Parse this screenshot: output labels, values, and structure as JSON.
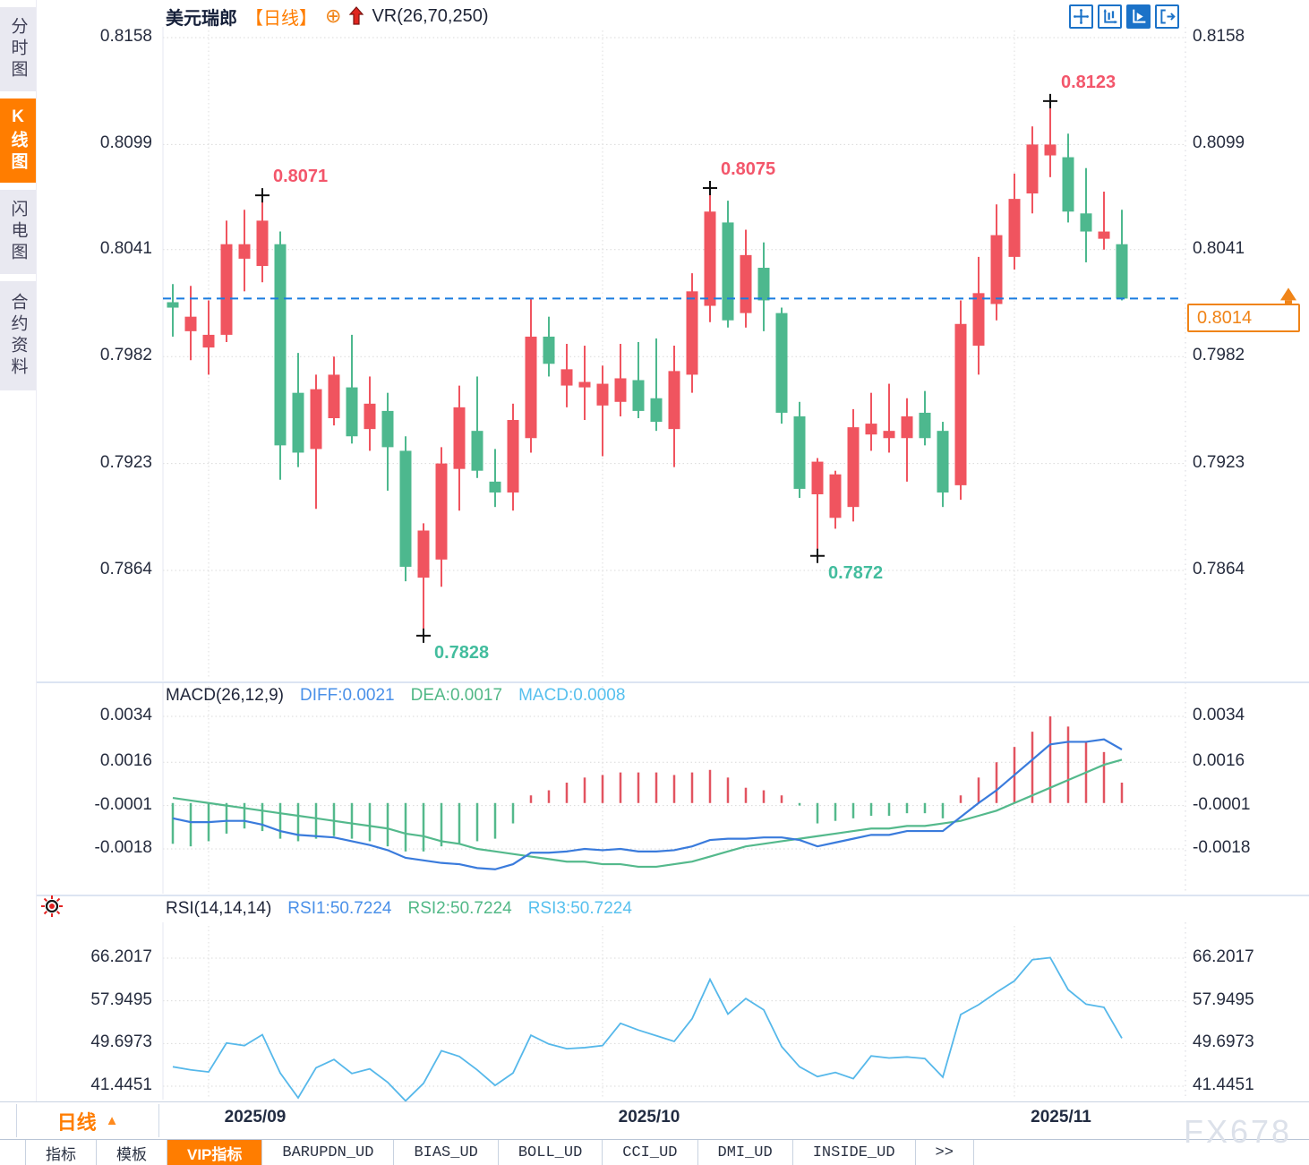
{
  "header": {
    "title": "美元瑞郎",
    "period_tag": "【日线】",
    "add_icon": "⊕",
    "indicator_label": "VR(26,70,250)"
  },
  "toolbar": {
    "icons": [
      "move-crosshair-icon",
      "axis-candles-icon",
      "axis-play-icon",
      "exit-arrow-icon"
    ]
  },
  "sidebar": {
    "items": [
      {
        "label": "分时图",
        "active": false
      },
      {
        "label": "K线图",
        "active": true
      },
      {
        "label": "闪电图",
        "active": false
      },
      {
        "label": "合约资料",
        "active": false
      }
    ]
  },
  "colors": {
    "up": "#f0545f",
    "down": "#4db88e",
    "accent_orange": "#ff7d00",
    "dash_line_blue": "#1a7ce0",
    "diff_blue": "#3a7bdc",
    "dea_green": "#54b98c",
    "rsi_cyan": "#56b8ea",
    "anno_high": "#f3566b",
    "anno_low": "#43bd9e"
  },
  "chart_data": [
    {
      "type": "candlestick",
      "title": "美元瑞郎 日线",
      "y_ticks": [
        0.8158,
        0.8099,
        0.8041,
        0.7982,
        0.7923,
        0.7864
      ],
      "x_ticks": [
        {
          "label": "2025/09",
          "index": 2
        },
        {
          "label": "2025/10",
          "index": 24
        },
        {
          "label": "2025/11",
          "index": 47
        }
      ],
      "current_price": "0.8014",
      "ohlc": [
        [
          0.8012,
          0.8022,
          0.7993,
          0.8009
        ],
        [
          0.7996,
          0.8021,
          0.798,
          0.8004
        ],
        [
          0.7987,
          0.8013,
          0.7972,
          0.7994
        ],
        [
          0.7994,
          0.8057,
          0.799,
          0.8044
        ],
        [
          0.8036,
          0.8063,
          0.8018,
          0.8044
        ],
        [
          0.8032,
          0.8071,
          0.8023,
          0.8057
        ],
        [
          0.8044,
          0.8051,
          0.7914,
          0.7933
        ],
        [
          0.7962,
          0.7984,
          0.7921,
          0.7929
        ],
        [
          0.7931,
          0.7972,
          0.7898,
          0.7964
        ],
        [
          0.7948,
          0.7982,
          0.7944,
          0.7972
        ],
        [
          0.7965,
          0.7994,
          0.7934,
          0.7938
        ],
        [
          0.7942,
          0.7971,
          0.793,
          0.7956
        ],
        [
          0.7952,
          0.7962,
          0.7908,
          0.7932
        ],
        [
          0.793,
          0.7938,
          0.7858,
          0.7866
        ],
        [
          0.786,
          0.789,
          0.7828,
          0.7886
        ],
        [
          0.787,
          0.7932,
          0.7855,
          0.7923
        ],
        [
          0.792,
          0.7966,
          0.7897,
          0.7954
        ],
        [
          0.7941,
          0.7971,
          0.7915,
          0.7919
        ],
        [
          0.7913,
          0.7931,
          0.7899,
          0.7907
        ],
        [
          0.7907,
          0.7956,
          0.7897,
          0.7947
        ],
        [
          0.7937,
          0.8014,
          0.7929,
          0.7993
        ],
        [
          0.7993,
          0.8004,
          0.7971,
          0.7978
        ],
        [
          0.7966,
          0.7989,
          0.7954,
          0.7975
        ],
        [
          0.7965,
          0.7988,
          0.7947,
          0.7968
        ],
        [
          0.7955,
          0.7977,
          0.7927,
          0.7967
        ],
        [
          0.7957,
          0.7989,
          0.7949,
          0.797
        ],
        [
          0.7969,
          0.799,
          0.7948,
          0.7952
        ],
        [
          0.7959,
          0.7992,
          0.7941,
          0.7946
        ],
        [
          0.7942,
          0.7988,
          0.7921,
          0.7974
        ],
        [
          0.7972,
          0.8028,
          0.7962,
          0.8018
        ],
        [
          0.801,
          0.8075,
          0.8001,
          0.8062
        ],
        [
          0.8056,
          0.8068,
          0.7998,
          0.8002
        ],
        [
          0.8006,
          0.8052,
          0.7998,
          0.8038
        ],
        [
          0.8031,
          0.8045,
          0.7996,
          0.8013
        ],
        [
          0.8006,
          0.8009,
          0.7945,
          0.7951
        ],
        [
          0.7949,
          0.7957,
          0.7904,
          0.7909
        ],
        [
          0.7906,
          0.7926,
          0.7872,
          0.7924
        ],
        [
          0.7893,
          0.7919,
          0.7887,
          0.7917
        ],
        [
          0.7899,
          0.7953,
          0.7891,
          0.7943
        ],
        [
          0.7939,
          0.7962,
          0.793,
          0.7945
        ],
        [
          0.7937,
          0.7967,
          0.7929,
          0.7941
        ],
        [
          0.7937,
          0.7959,
          0.7913,
          0.7949
        ],
        [
          0.7951,
          0.7963,
          0.7933,
          0.7937
        ],
        [
          0.7941,
          0.7946,
          0.7899,
          0.7907
        ],
        [
          0.7911,
          0.8013,
          0.7903,
          0.8
        ],
        [
          0.7988,
          0.8037,
          0.7972,
          0.8017
        ],
        [
          0.8011,
          0.8066,
          0.8002,
          0.8049
        ],
        [
          0.8037,
          0.8083,
          0.803,
          0.8069
        ],
        [
          0.8072,
          0.8109,
          0.8061,
          0.8099
        ],
        [
          0.8093,
          0.8123,
          0.8081,
          0.8099
        ],
        [
          0.8092,
          0.8105,
          0.8056,
          0.8062
        ],
        [
          0.8061,
          0.8086,
          0.8034,
          0.8051
        ],
        [
          0.8047,
          0.8073,
          0.8041,
          0.8051
        ],
        [
          0.8044,
          0.8063,
          0.8013,
          0.8014
        ]
      ],
      "annotations": [
        {
          "text": "0.8071",
          "index": 5,
          "price": 0.8071,
          "kind": "high"
        },
        {
          "text": "0.7828",
          "index": 14,
          "price": 0.7828,
          "kind": "low"
        },
        {
          "text": "0.8075",
          "index": 30,
          "price": 0.8075,
          "kind": "high"
        },
        {
          "text": "0.7872",
          "index": 36,
          "price": 0.7872,
          "kind": "low"
        },
        {
          "text": "0.8123",
          "index": 49,
          "price": 0.8123,
          "kind": "high"
        }
      ]
    },
    {
      "type": "bar",
      "name": "MACD(26,12,9)",
      "labels": {
        "diff": "DIFF:0.0021",
        "dea": "DEA:0.0017",
        "macd": "MACD:0.0008"
      },
      "y_ticks": [
        0.0034,
        0.0016,
        -0.0001,
        -0.0018
      ],
      "value_scale": 0.0001,
      "histogram": [
        -16,
        -17,
        -15,
        -12,
        -10,
        -11,
        -14,
        -15,
        -14,
        -13,
        -14,
        -15,
        -17,
        -19,
        -19,
        -17,
        -16,
        -15,
        -14,
        -8,
        3,
        5,
        8,
        10,
        11,
        12,
        12,
        12,
        11,
        12,
        13,
        10,
        6,
        5,
        3,
        -1,
        -8,
        -7,
        -6,
        -5,
        -5,
        -4,
        -4,
        -6,
        3,
        10,
        16,
        22,
        28,
        34,
        30,
        24,
        20,
        8
      ],
      "dea_line": [
        2,
        1,
        0,
        -1,
        -2,
        -3,
        -4,
        -5,
        -6,
        -7,
        -8,
        -9,
        -10,
        -12,
        -13,
        -15,
        -16,
        -18,
        -19,
        -20,
        -21,
        -22,
        -23,
        -23,
        -24,
        -24,
        -25,
        -25,
        -24,
        -23,
        -21,
        -19,
        -17,
        -16,
        -15,
        -14,
        -13,
        -12,
        -11,
        -10,
        -10,
        -9,
        -9,
        -8,
        -7,
        -5,
        -3,
        0,
        3,
        6,
        9,
        12,
        15,
        17
      ],
      "diff_line": [
        -6,
        -7.5,
        -7.5,
        -7,
        -7,
        -8.5,
        -11,
        -12.5,
        -13,
        -13.5,
        -15,
        -16.5,
        -18.5,
        -21.5,
        -22.5,
        -23.5,
        -24,
        -25.5,
        -26,
        -24,
        -19.5,
        -19.5,
        -19,
        -18,
        -18.5,
        -18,
        -19,
        -19,
        -18.5,
        -17,
        -14.5,
        -14,
        -14,
        -13.5,
        -13.5,
        -14.5,
        -17,
        -15.5,
        -14,
        -12.5,
        -12.5,
        -11,
        -11,
        -11,
        -5.5,
        0,
        5,
        11,
        17,
        23,
        24,
        24,
        25,
        21
      ]
    },
    {
      "type": "line",
      "name": "RSI(14,14,14)",
      "labels": {
        "rsi1": "RSI1:50.7224",
        "rsi2": "RSI2:50.7224",
        "rsi3": "RSI3:50.7224"
      },
      "y_ticks": [
        66.2017,
        57.9495,
        49.6973,
        41.4451
      ],
      "values": [
        45.2,
        44.6,
        44.2,
        49.8,
        49.3,
        51.4,
        44.0,
        39.2,
        45.0,
        46.6,
        43.9,
        44.8,
        42.2,
        38.6,
        42.0,
        48.3,
        47.2,
        44.6,
        41.6,
        44.0,
        51.3,
        49.6,
        48.7,
        48.9,
        49.3,
        53.6,
        52.3,
        51.2,
        50.1,
        54.5,
        62.1,
        55.4,
        58.4,
        56.2,
        49.1,
        45.2,
        43.3,
        44.1,
        42.9,
        47.3,
        46.9,
        47.1,
        46.8,
        43.2,
        55.3,
        57.2,
        59.6,
        61.8,
        65.9,
        66.3,
        60.1,
        57.3,
        56.7,
        50.7224
      ]
    }
  ],
  "bottom": {
    "period_selector": {
      "label": "日线",
      "arrow": "▲"
    },
    "x_labels": [
      "2025/09",
      "2025/10",
      "2025/11"
    ],
    "tabs": [
      {
        "label": "指标",
        "active": false,
        "cn": true
      },
      {
        "label": "模板",
        "active": false,
        "cn": true
      },
      {
        "label": "VIP指标",
        "active": true,
        "cn": true
      },
      {
        "label": "BARUPDN_UD",
        "active": false,
        "cn": false
      },
      {
        "label": "BIAS_UD",
        "active": false,
        "cn": false
      },
      {
        "label": "BOLL_UD",
        "active": false,
        "cn": false
      },
      {
        "label": "CCI_UD",
        "active": false,
        "cn": false
      },
      {
        "label": "DMI_UD",
        "active": false,
        "cn": false
      },
      {
        "label": "INSIDE_UD",
        "active": false,
        "cn": false
      },
      {
        "label": ">>",
        "active": false,
        "cn": false
      }
    ]
  },
  "watermark": "FX678"
}
